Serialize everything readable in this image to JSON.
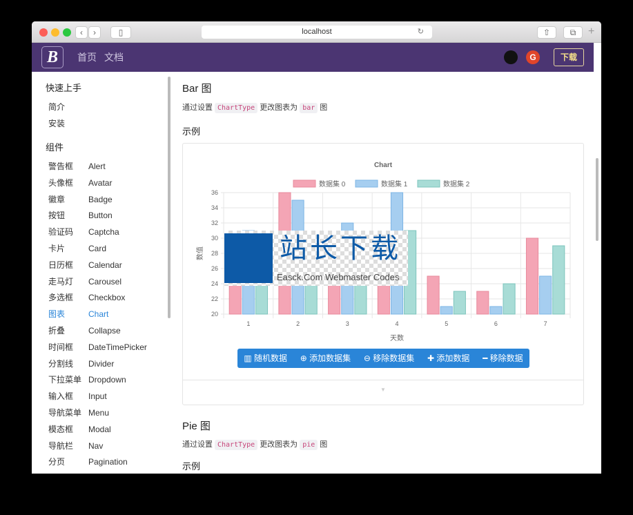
{
  "browser": {
    "url": "localhost"
  },
  "nav": {
    "logo": "B",
    "links": [
      "首页",
      "文档"
    ],
    "download": "下载"
  },
  "sidebar": {
    "sections": [
      {
        "title": "快速上手",
        "items": [
          {
            "label": "简介"
          },
          {
            "label": "安装"
          }
        ]
      },
      {
        "title": "组件",
        "items": [
          {
            "label": "警告框",
            "en": "Alert"
          },
          {
            "label": "头像框",
            "en": "Avatar"
          },
          {
            "label": "徽章",
            "en": "Badge"
          },
          {
            "label": "按钮",
            "en": "Button"
          },
          {
            "label": "验证码",
            "en": "Captcha"
          },
          {
            "label": "卡片",
            "en": "Card"
          },
          {
            "label": "日历框",
            "en": "Calendar"
          },
          {
            "label": "走马灯",
            "en": "Carousel"
          },
          {
            "label": "多选框",
            "en": "Checkbox"
          },
          {
            "label": "图表",
            "en": "Chart",
            "active": true
          },
          {
            "label": "折叠",
            "en": "Collapse"
          },
          {
            "label": "时间框",
            "en": "DateTimePicker"
          },
          {
            "label": "分割线",
            "en": "Divider"
          },
          {
            "label": "下拉菜单",
            "en": "Dropdown"
          },
          {
            "label": "输入框",
            "en": "Input"
          },
          {
            "label": "导航菜单",
            "en": "Menu"
          },
          {
            "label": "模态框",
            "en": "Modal"
          },
          {
            "label": "导航栏",
            "en": "Nav"
          },
          {
            "label": "分页",
            "en": "Pagination"
          }
        ]
      }
    ]
  },
  "main": {
    "bar": {
      "title": "Bar 图",
      "desc_pre": "通过设置",
      "code1": "ChartType",
      "desc_mid": "更改图表为",
      "code2": "bar",
      "desc_post": "图",
      "example": "示例"
    },
    "pie": {
      "title": "Pie 图",
      "desc_pre": "通过设置",
      "code1": "ChartType",
      "desc_mid": "更改图表为",
      "code2": "pie",
      "desc_post": "图",
      "example": "示例"
    },
    "buttons": [
      "随机数据",
      "添加数据集",
      "移除数据集",
      "添加数据",
      "移除数据"
    ],
    "button_icons": [
      "bar-chart-icon",
      "plus-circle-icon",
      "minus-circle-icon",
      "plus-icon",
      "minus-icon"
    ],
    "button_color": "#2a85d8",
    "watermark": {
      "cn": "站长下载",
      "en": "Easck.Com Webmaster Codes"
    }
  },
  "chart_data": {
    "type": "bar",
    "title": "Chart",
    "xlabel": "天数",
    "ylabel": "数值",
    "categories": [
      "1",
      "2",
      "3",
      "4",
      "5",
      "6",
      "7"
    ],
    "ylim": [
      20,
      36
    ],
    "yticks": [
      20,
      22,
      24,
      26,
      28,
      30,
      32,
      34,
      36
    ],
    "grid": true,
    "legend": "top",
    "series": [
      {
        "name": "数据集 0",
        "color": "#f4a5b5",
        "stroke": "#e88a9c",
        "values": [
          27,
          36,
          26,
          27,
          25,
          23,
          30
        ]
      },
      {
        "name": "数据集 1",
        "color": "#a6cef0",
        "stroke": "#7db5e4",
        "values": [
          31,
          35,
          32,
          36,
          21,
          21,
          25
        ]
      },
      {
        "name": "数据集 2",
        "color": "#a8dcd6",
        "stroke": "#7cc4bc",
        "values": [
          30,
          28,
          29,
          31,
          23,
          24,
          29
        ]
      }
    ]
  }
}
